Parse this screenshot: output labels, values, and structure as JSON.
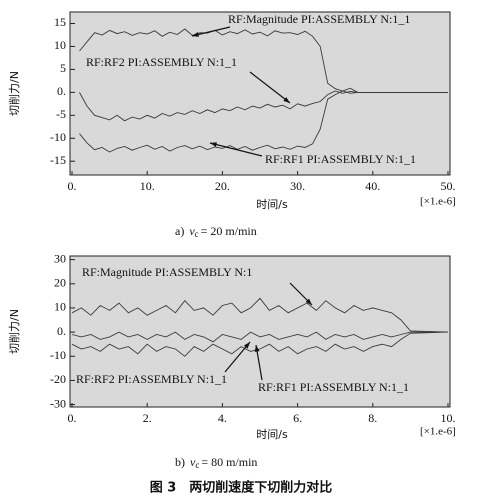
{
  "chart_data": [
    {
      "type": "line",
      "x_label": "时间/s",
      "y_label": "切削力/N",
      "x_multiplier": "[×1.e-6]",
      "caption_prefix": "a)",
      "caption_var": "v",
      "caption_sub": "c",
      "caption_rest": "= 20 m/min",
      "xlim": [
        0,
        50
      ],
      "ylim": [
        -18,
        17.5
      ],
      "xticks": [
        {
          "value": 0,
          "label": "0."
        },
        {
          "value": 10,
          "label": "10."
        },
        {
          "value": 20,
          "label": "20."
        },
        {
          "value": 30,
          "label": "30."
        },
        {
          "value": 40,
          "label": "40."
        },
        {
          "value": 50,
          "label": "50."
        }
      ],
      "yticks": [
        15,
        10,
        5,
        {
          "value": 0,
          "label": "0."
        },
        -5,
        -10,
        -15
      ],
      "background": "#d9d9d9",
      "annotations": [
        "RF:Magnitude PI:ASSEMBLY N:1_1",
        "RF:RF2 PI:ASSEMBLY N:1_1",
        "RF:RF1 PI:ASSEMBLY N:1_1"
      ],
      "x": [
        1,
        2,
        3,
        4,
        5,
        6,
        7,
        8,
        9,
        10,
        11,
        12,
        13,
        14,
        15,
        16,
        17,
        18,
        19,
        20,
        21,
        22,
        23,
        24,
        25,
        26,
        27,
        28,
        29,
        30,
        31,
        32,
        33,
        34,
        35,
        36,
        37,
        38,
        40,
        45,
        50
      ],
      "series": [
        {
          "name": "RF:Magnitude",
          "color": "#3a3a3a",
          "values": [
            9,
            11,
            13,
            12.5,
            13.5,
            12.8,
            13.2,
            12.4,
            13,
            12.7,
            13.4,
            12.2,
            13.1,
            12.6,
            13.8,
            12.4,
            13,
            12.9,
            13.5,
            12.5,
            13.2,
            12.8,
            13.6,
            12.7,
            13.1,
            12.3,
            13.4,
            12.9,
            13,
            12.6,
            13.3,
            12.2,
            10,
            2,
            0.8,
            0.3,
            0.9,
            0,
            0,
            0,
            0
          ]
        },
        {
          "name": "RF:RF2",
          "color": "#3a3a3a",
          "values": [
            0,
            -3,
            -5,
            -5.5,
            -6,
            -5,
            -6.2,
            -5.4,
            -5.8,
            -5,
            -5.6,
            -4.6,
            -5.2,
            -4.4,
            -4.8,
            -4,
            -4.6,
            -3.8,
            -4.4,
            -3.6,
            -4,
            -3.2,
            -3.8,
            -3,
            -3.4,
            -2.6,
            -3.2,
            -2.8,
            -3.6,
            -2.5,
            -3,
            -2.4,
            -2,
            -0.5,
            0.3,
            -0.2,
            0.2,
            0,
            0,
            0,
            0
          ]
        },
        {
          "name": "RF:RF1",
          "color": "#3a3a3a",
          "values": [
            -9,
            -11,
            -12.5,
            -12,
            -13,
            -12.2,
            -11.8,
            -12.6,
            -12,
            -11.5,
            -12.4,
            -11.8,
            -12.8,
            -12,
            -11.6,
            -12.3,
            -11.7,
            -12.5,
            -11.9,
            -12.2,
            -11.6,
            -12.4,
            -11.8,
            -12.6,
            -12,
            -11.5,
            -12.3,
            -11.9,
            -12.4,
            -11.7,
            -12,
            -11.2,
            -8,
            -1.5,
            -0.5,
            0.3,
            -0.2,
            0,
            0,
            0,
            0
          ]
        }
      ]
    },
    {
      "type": "line",
      "x_label": "时间/s",
      "y_label": "切削力/N",
      "x_multiplier": "[×1.e-6]",
      "caption_prefix": "b)",
      "caption_var": "v",
      "caption_sub": "c",
      "caption_rest": "= 80 m/min",
      "xlim": [
        0,
        10
      ],
      "ylim": [
        -31,
        31.5
      ],
      "xticks": [
        {
          "value": 0,
          "label": "0."
        },
        {
          "value": 2,
          "label": "2."
        },
        {
          "value": 4,
          "label": "4."
        },
        {
          "value": 6,
          "label": "6."
        },
        {
          "value": 8,
          "label": "8."
        },
        {
          "value": 10,
          "label": "10."
        }
      ],
      "yticks": [
        30,
        20,
        10,
        {
          "value": 0,
          "label": "0."
        },
        -10,
        -20,
        -30
      ],
      "background": "#d9d9d9",
      "annotations": [
        "RF:Magnitude PI:ASSEMBLY N:1",
        "RF:RF2 PI:ASSEMBLY N:1_1",
        "RF:RF1 PI:ASSEMBLY N:1_1"
      ],
      "x": [
        0,
        0.25,
        0.5,
        0.75,
        1,
        1.25,
        1.5,
        1.75,
        2,
        2.25,
        2.5,
        2.75,
        3,
        3.25,
        3.5,
        3.75,
        4,
        4.25,
        4.5,
        4.75,
        5,
        5.25,
        5.5,
        5.75,
        6,
        6.25,
        6.5,
        6.75,
        7,
        7.25,
        7.5,
        7.75,
        8,
        8.25,
        8.5,
        8.75,
        9,
        10
      ],
      "series": [
        {
          "name": "RF:Magnitude",
          "color": "#3a3a3a",
          "values": [
            8,
            10,
            7,
            11,
            9,
            12,
            8,
            10,
            7,
            9,
            11,
            8,
            13,
            9,
            10,
            7,
            11,
            12,
            8,
            10,
            14,
            9,
            11,
            8,
            10,
            12,
            9,
            13,
            10,
            8,
            11,
            9,
            10,
            9,
            8,
            5,
            0.5,
            0
          ]
        },
        {
          "name": "RF:RF2",
          "color": "#3a3a3a",
          "values": [
            -1,
            -2,
            -1,
            -3,
            -2,
            0,
            -2,
            -1,
            -3,
            -1,
            -2,
            0,
            -3,
            -1,
            -2,
            -4,
            -1,
            -2,
            -3,
            0,
            -2,
            -1,
            -3,
            -2,
            -1,
            -2,
            0,
            -3,
            -1,
            -2,
            -1,
            -3,
            -2,
            -1,
            -2,
            -1,
            0,
            0
          ]
        },
        {
          "name": "RF:RF1",
          "color": "#3a3a3a",
          "values": [
            -5,
            -7,
            -6,
            -8,
            -5,
            -7,
            -6,
            -9,
            -5,
            -8,
            -6,
            -7,
            -10,
            -6,
            -8,
            -5,
            -7,
            -9,
            -6,
            -8,
            -7,
            -5,
            -8,
            -6,
            -9,
            -7,
            -6,
            -8,
            -5,
            -7,
            -6,
            -8,
            -6,
            -5,
            -6,
            -3,
            -0.5,
            0
          ]
        }
      ]
    }
  ],
  "figure_caption": "图 3　两切削速度下切削力对比"
}
